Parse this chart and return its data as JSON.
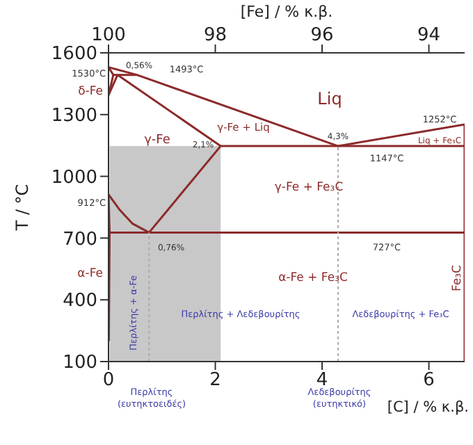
{
  "chart_data": {
    "type": "line",
    "xlabel": "[C] / % κ.β.",
    "x2label": "[Fe] / % κ.β.",
    "ylabel": "T / °C",
    "xlim": [
      0,
      6.67
    ],
    "xticks": [
      0,
      2,
      4,
      6
    ],
    "x2lim": [
      100,
      93.33
    ],
    "x2ticks": [
      100,
      98,
      96,
      94
    ],
    "ylim": [
      100,
      1600
    ],
    "yticks": [
      100,
      400,
      700,
      1000,
      1300,
      1600
    ],
    "grid": false,
    "legend": false,
    "marker": "none",
    "line_style": "solid",
    "series": [
      {
        "type": "area",
        "color": "#c8c8c8",
        "x": [
          0.02,
          2.1
        ],
        "values": [
          1147,
          1147
        ]
      },
      {
        "color": "#8c2a2a",
        "x": [
          0,
          0.53,
          4.3
        ],
        "values": [
          1530,
          1493,
          1147
        ]
      },
      {
        "color": "#8c2a2a",
        "x": [
          4.3,
          6.67
        ],
        "values": [
          1147,
          1252
        ]
      },
      {
        "color": "#8c2a2a",
        "x": [
          2.1,
          6.67
        ],
        "values": [
          1147,
          1147
        ]
      },
      {
        "color": "#8c2a2a",
        "x": [
          0.17,
          2.1
        ],
        "values": [
          1493,
          1147
        ]
      },
      {
        "color": "#8c2a2a",
        "x": [
          0.09,
          0.53
        ],
        "values": [
          1493,
          1493
        ]
      },
      {
        "color": "#8c2a2a",
        "x": [
          0,
          0.09,
          0
        ],
        "values": [
          1530,
          1493,
          1394
        ]
      },
      {
        "color": "#8c2a2a",
        "x": [
          0.17,
          0
        ],
        "values": [
          1493,
          1394
        ]
      },
      {
        "color": "#8c2a2a",
        "x": [
          0,
          0.2,
          0.45,
          0.76
        ],
        "values": [
          912,
          840,
          770,
          727
        ]
      },
      {
        "color": "#8c2a2a",
        "x": [
          0.76,
          2.1
        ],
        "values": [
          727,
          1147
        ]
      },
      {
        "color": "#8c2a2a",
        "x": [
          0.02,
          6.67
        ],
        "values": [
          727,
          727
        ]
      },
      {
        "color": "#8c2a2a",
        "x": [
          0,
          0.02,
          0.005
        ],
        "values": [
          912,
          727,
          200
        ]
      },
      {
        "color": "#8c2a2a",
        "x": [
          6.67,
          6.67
        ],
        "values": [
          100,
          1252
        ]
      },
      {
        "color": "#aaaaaa",
        "line_style": "dotted",
        "x": [
          0.76,
          0.76
        ],
        "values": [
          100,
          727
        ]
      },
      {
        "color": "#aaaaaa",
        "line_style": "dotted",
        "x": [
          4.3,
          4.3
        ],
        "values": [
          100,
          1147
        ]
      }
    ],
    "annotations": [
      "1530°C",
      "δ-Fe",
      "912°C",
      "α-Fe",
      "0,56%",
      "1493°C",
      "Liq",
      "1252°C",
      "γ-Fe + Liq",
      "4,3%",
      "Liq + Fe₃C",
      "γ-Fe",
      "2,1%",
      "1147°C",
      "γ-Fe + Fe₃C",
      "0,76%",
      "727°C",
      "α-Fe + Fe₃C",
      "Fe₃C",
      "Περλίτης + α-Fe",
      "Περλίτης + Λεδεβουρίτης",
      "Λεδεβουρίτης + Fe₃C",
      "Περλίτης\n(ευτηκτοειδές)",
      "Λεδεβουρίτης\n(ευτηκτικό)"
    ]
  }
}
